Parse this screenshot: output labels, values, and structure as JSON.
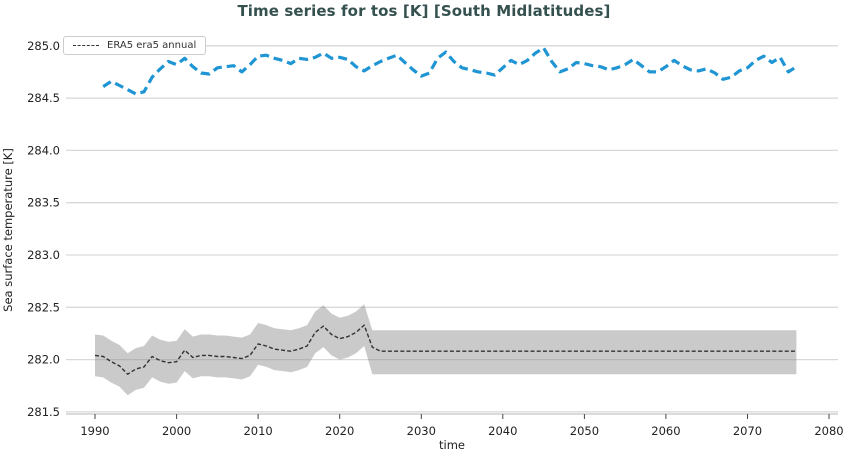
{
  "title": "Time series for tos [K] [South Midlatitudes]",
  "legend": {
    "entries": [
      {
        "label": "ERA5 era5 annual",
        "line_style": "dashed",
        "color": "#333333"
      }
    ]
  },
  "chart_data": {
    "type": "line",
    "title": "Time series for tos [K] [South Midlatitudes]",
    "xlabel": "time",
    "ylabel": "Sea surface temperature [K]",
    "xlim": [
      1986.44,
      2081.1
    ],
    "ylim": [
      281.48,
      285.17
    ],
    "grid": "horizontal",
    "legend_position": "upper left",
    "xticks": [
      1990,
      2000,
      2010,
      2020,
      2030,
      2040,
      2050,
      2060,
      2070,
      2080
    ],
    "xtick_labels": [
      "1990",
      "2000",
      "2010",
      "2020",
      "2030",
      "2040",
      "2050",
      "2060",
      "2070",
      "2080"
    ],
    "yticks": [
      281.5,
      282.0,
      282.5,
      283.0,
      283.5,
      284.0,
      284.5,
      285.0
    ],
    "ytick_labels": [
      "281.5",
      "282.0",
      "282.5",
      "283.0",
      "283.5",
      "284.0",
      "284.5",
      "285.0"
    ],
    "series": [
      {
        "name": "",
        "color": "#1f95d3",
        "style": "dashed",
        "width": 3.2,
        "dash": "9 5",
        "start_year": 1991,
        "values": [
          284.61,
          284.66,
          284.62,
          284.58,
          284.54,
          284.56,
          284.7,
          284.78,
          284.85,
          284.82,
          284.88,
          284.8,
          284.74,
          284.73,
          284.79,
          284.8,
          284.81,
          284.75,
          284.82,
          284.9,
          284.91,
          284.88,
          284.86,
          284.83,
          284.88,
          284.87,
          284.89,
          284.93,
          284.88,
          284.89,
          284.87,
          284.8,
          284.76,
          284.81,
          284.85,
          284.88,
          284.91,
          284.84,
          284.77,
          284.71,
          284.74,
          284.88,
          284.94,
          284.85,
          284.79,
          284.77,
          284.75,
          284.74,
          284.72,
          284.79,
          284.86,
          284.82,
          284.86,
          284.93,
          284.98,
          284.85,
          284.75,
          284.78,
          284.84,
          284.83,
          284.81,
          284.8,
          284.77,
          284.79,
          284.82,
          284.87,
          284.81,
          284.75,
          284.75,
          284.8,
          284.86,
          284.81,
          284.77,
          284.76,
          284.78,
          284.74,
          284.68,
          284.7,
          284.76,
          284.79,
          284.86,
          284.9,
          284.84,
          284.89,
          284.75,
          284.8
        ]
      },
      {
        "name": "ERA5 era5 annual",
        "color": "#333333",
        "style": "dashed",
        "width": 1.4,
        "dash": "4 2.2",
        "start_year": 1990,
        "values": [
          282.04,
          282.03,
          281.98,
          281.94,
          281.86,
          281.91,
          281.93,
          282.03,
          281.99,
          281.97,
          281.98,
          282.09,
          282.02,
          282.04,
          282.04,
          282.03,
          282.03,
          282.02,
          282.01,
          282.04,
          282.15,
          282.13,
          282.1,
          282.09,
          282.08,
          282.1,
          282.13,
          282.26,
          282.32,
          282.24,
          282.2,
          282.22,
          282.26,
          282.33,
          282.12,
          282.08,
          282.08,
          282.08,
          282.08,
          282.08,
          282.08,
          282.08,
          282.08,
          282.08,
          282.08,
          282.08,
          282.08,
          282.08,
          282.08,
          282.08,
          282.08,
          282.08,
          282.08,
          282.08,
          282.08,
          282.08,
          282.08,
          282.08,
          282.08,
          282.08,
          282.08,
          282.08,
          282.08,
          282.08,
          282.08,
          282.08,
          282.08,
          282.08,
          282.08,
          282.08,
          282.08,
          282.08,
          282.08,
          282.08,
          282.08,
          282.08,
          282.08,
          282.08,
          282.08,
          282.08,
          282.08,
          282.08,
          282.08,
          282.08,
          282.08,
          282.08,
          282.08
        ],
        "band": {
          "fill": "#808080",
          "opacity": 0.42,
          "start_year": 1990,
          "upper": [
            282.24,
            282.23,
            282.18,
            282.14,
            282.06,
            282.11,
            282.13,
            282.23,
            282.19,
            282.17,
            282.18,
            282.29,
            282.22,
            282.24,
            282.24,
            282.23,
            282.23,
            282.22,
            282.21,
            282.24,
            282.35,
            282.33,
            282.3,
            282.29,
            282.28,
            282.3,
            282.33,
            282.46,
            282.52,
            282.44,
            282.4,
            282.42,
            282.46,
            282.53,
            282.28,
            282.28,
            282.28,
            282.28,
            282.28,
            282.28,
            282.28,
            282.28,
            282.28,
            282.28,
            282.28,
            282.28,
            282.28,
            282.28,
            282.28,
            282.28,
            282.28,
            282.28,
            282.28,
            282.28,
            282.28,
            282.28,
            282.28,
            282.28,
            282.28,
            282.28,
            282.28,
            282.28,
            282.28,
            282.28,
            282.28,
            282.28,
            282.28,
            282.28,
            282.28,
            282.28,
            282.28,
            282.28,
            282.28,
            282.28,
            282.28,
            282.28,
            282.28,
            282.28,
            282.28,
            282.28,
            282.28,
            282.28,
            282.28,
            282.28,
            282.28,
            282.28,
            282.28
          ],
          "lower": [
            281.84,
            281.83,
            281.78,
            281.74,
            281.66,
            281.71,
            281.73,
            281.83,
            281.79,
            281.77,
            281.78,
            281.89,
            281.82,
            281.84,
            281.84,
            281.83,
            281.83,
            281.82,
            281.81,
            281.84,
            281.95,
            281.93,
            281.9,
            281.89,
            281.88,
            281.9,
            281.93,
            282.06,
            282.12,
            282.04,
            282.0,
            282.02,
            282.06,
            282.13,
            281.86,
            281.86,
            281.86,
            281.86,
            281.86,
            281.86,
            281.86,
            281.86,
            281.86,
            281.86,
            281.86,
            281.86,
            281.86,
            281.86,
            281.86,
            281.86,
            281.86,
            281.86,
            281.86,
            281.86,
            281.86,
            281.86,
            281.86,
            281.86,
            281.86,
            281.86,
            281.86,
            281.86,
            281.86,
            281.86,
            281.86,
            281.86,
            281.86,
            281.86,
            281.86,
            281.86,
            281.86,
            281.86,
            281.86,
            281.86,
            281.86,
            281.86,
            281.86,
            281.86,
            281.86,
            281.86,
            281.86,
            281.86,
            281.86,
            281.86,
            281.86,
            281.86,
            281.86
          ]
        }
      }
    ],
    "colors": {
      "title": "#34514f",
      "grid": "#d9d9d9",
      "spine": "#cfcfcf",
      "tick_text": "#222222",
      "blue_series": "#1f95d3",
      "era5_series": "#333333",
      "band_rendered": "#cbcbcb"
    }
  }
}
